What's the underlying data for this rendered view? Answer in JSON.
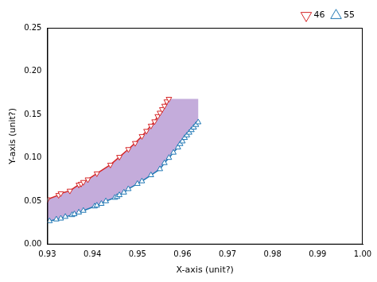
{
  "chart_data": {
    "type": "line",
    "x_label": "X-axis (unit?)",
    "y_label": "Y-axis (unit?)",
    "xlim": [
      0.93,
      1.0
    ],
    "xticks": [
      0.93,
      0.94,
      0.95,
      0.96,
      0.97,
      0.98,
      0.99,
      {
        "value": 1.0,
        "label": "1.00"
      }
    ],
    "ylim": [
      0,
      0.25
    ],
    "yticks": [
      {
        "value": 0,
        "label": "0.00"
      },
      0.05,
      {
        "value": 0.1,
        "label": "0.10"
      },
      0.15,
      {
        "value": 0.2,
        "label": "0.20"
      },
      0.25
    ],
    "grid": false,
    "legend": "upper right",
    "series": [
      {
        "name": "46",
        "color": "#d62728",
        "marker": "triangle_down",
        "x": [
          0.93,
          0.9325,
          0.933,
          0.935,
          0.937,
          0.9375,
          0.938,
          0.939,
          0.941,
          0.944,
          0.946,
          0.948,
          0.9495,
          0.951,
          0.952,
          0.953,
          0.9538,
          0.9545,
          0.955,
          0.9555,
          0.956,
          0.9565,
          0.957
        ],
        "values": [
          0.052,
          0.057,
          0.059,
          0.062,
          0.069,
          0.07,
          0.072,
          0.075,
          0.082,
          0.092,
          0.101,
          0.11,
          0.117,
          0.125,
          0.131,
          0.137,
          0.142,
          0.148,
          0.152,
          0.156,
          0.16,
          0.165,
          0.168
        ]
      },
      {
        "name": "55",
        "color": "#1f77b4",
        "marker": "triangle_up",
        "x": [
          0.9305,
          0.932,
          0.933,
          0.934,
          0.9355,
          0.936,
          0.937,
          0.938,
          0.9405,
          0.941,
          0.942,
          0.943,
          0.945,
          0.9455,
          0.946,
          0.947,
          0.948,
          0.95,
          0.951,
          0.953,
          0.955,
          0.956,
          0.957,
          0.958,
          0.959,
          0.9595,
          0.96,
          0.9605,
          0.961,
          0.9615,
          0.962,
          0.9625,
          0.963,
          0.9635
        ],
        "values": [
          0.027,
          0.029,
          0.03,
          0.032,
          0.034,
          0.035,
          0.037,
          0.039,
          0.044,
          0.045,
          0.047,
          0.05,
          0.054,
          0.055,
          0.057,
          0.06,
          0.064,
          0.07,
          0.073,
          0.08,
          0.087,
          0.094,
          0.1,
          0.106,
          0.112,
          0.116,
          0.119,
          0.123,
          0.126,
          0.129,
          0.132,
          0.135,
          0.138,
          0.141
        ]
      }
    ]
  }
}
